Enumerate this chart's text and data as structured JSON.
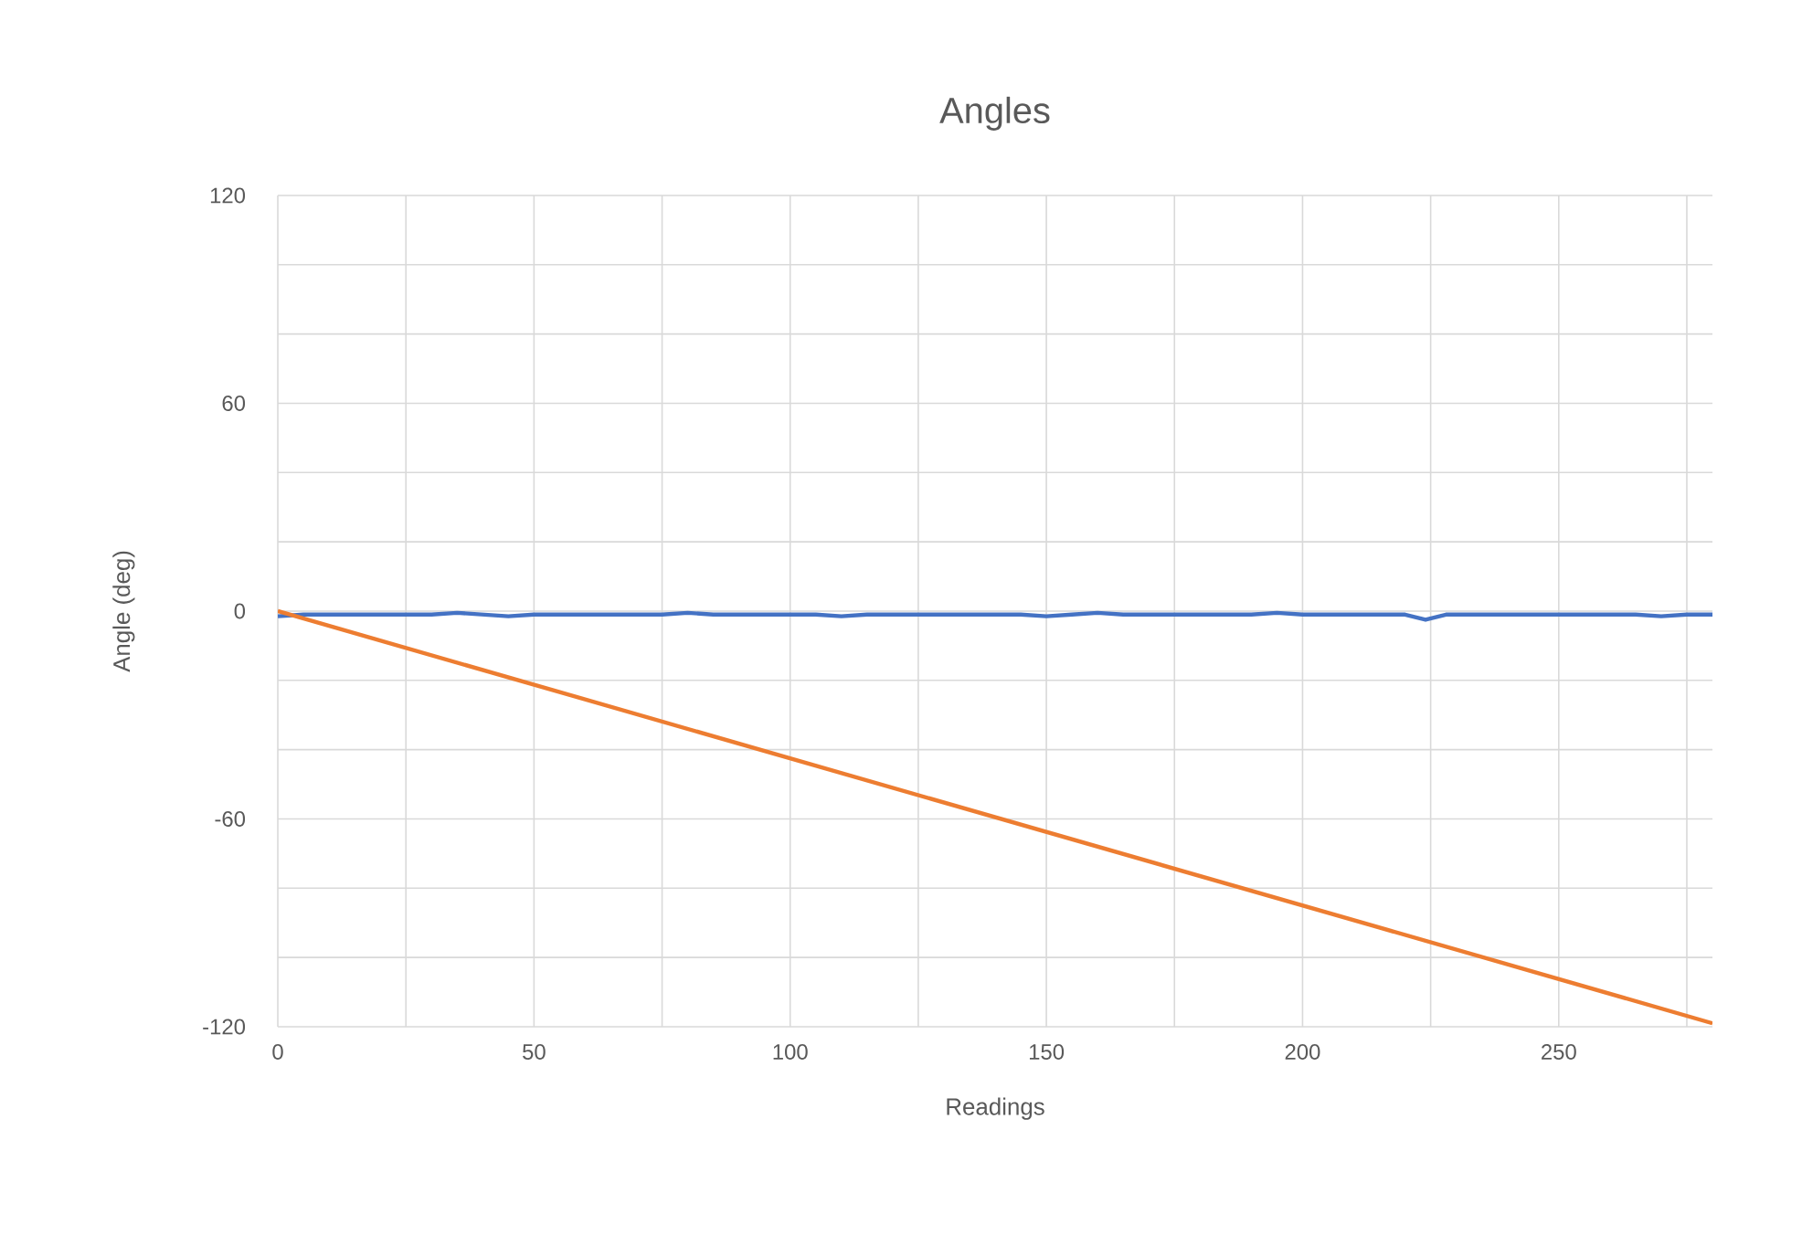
{
  "chart_data": {
    "type": "line",
    "title": "Angles",
    "xlabel": "Readings",
    "ylabel": "Angle (deg)",
    "xlim": [
      0,
      280
    ],
    "ylim": [
      -120,
      120
    ],
    "xticks": [
      0,
      {
        "value": 25,
        "label": null
      },
      50,
      {
        "value": 75,
        "label": null
      },
      100,
      {
        "value": 125,
        "label": null
      },
      150,
      {
        "value": 175,
        "label": null
      },
      200,
      {
        "value": 225,
        "label": null
      },
      250,
      {
        "value": 275,
        "label": null
      }
    ],
    "yticks": [
      -120,
      {
        "value": -100,
        "label": null
      },
      {
        "value": -80,
        "label": null
      },
      -60,
      {
        "value": -40,
        "label": null
      },
      {
        "value": -20,
        "label": null
      },
      0,
      {
        "value": 20,
        "label": null
      },
      {
        "value": 40,
        "label": null
      },
      60,
      {
        "value": 80,
        "label": null
      },
      {
        "value": 100,
        "label": null
      },
      120
    ],
    "grid": true,
    "marker": "none",
    "line_style": "solid",
    "series": [
      {
        "color": "#4472c4",
        "x": [
          0,
          5,
          10,
          15,
          20,
          25,
          30,
          35,
          40,
          45,
          50,
          55,
          60,
          65,
          70,
          75,
          80,
          85,
          90,
          95,
          100,
          105,
          110,
          115,
          120,
          125,
          130,
          135,
          140,
          145,
          150,
          155,
          160,
          165,
          170,
          175,
          180,
          185,
          190,
          195,
          200,
          205,
          210,
          215,
          220,
          224,
          228,
          235,
          240,
          245,
          250,
          255,
          260,
          265,
          270,
          275,
          280
        ],
        "values": [
          -1.5,
          -1,
          -1,
          -1,
          -1,
          -1,
          -1,
          -0.5,
          -1,
          -1.5,
          -1,
          -1,
          -1,
          -1,
          -1,
          -1,
          -0.5,
          -1,
          -1,
          -1,
          -1,
          -1,
          -1.5,
          -1,
          -1,
          -1,
          -1,
          -1,
          -1,
          -1,
          -1.5,
          -1,
          -0.5,
          -1,
          -1,
          -1,
          -1,
          -1,
          -1,
          -0.5,
          -1,
          -1,
          -1,
          -1,
          -1,
          -2.5,
          -1,
          -1,
          -1,
          -1,
          -1,
          -1,
          -1,
          -1,
          -1.5,
          -1,
          -1
        ]
      },
      {
        "color": "#ed7d31",
        "x": [
          0,
          280
        ],
        "values": [
          0,
          -119
        ]
      }
    ]
  }
}
